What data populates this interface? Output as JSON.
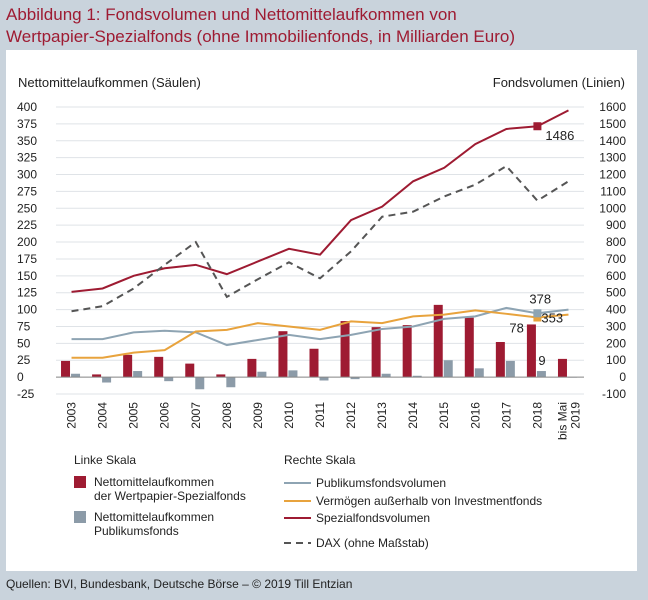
{
  "header": {
    "title_line1": "Abbildung 1: Fondsvolumen und Nettomittelaufkommen von",
    "title_line2": "Wertpapier-Spezialfonds (ohne Immobilienfonds, in Milliarden Euro)"
  },
  "footer": {
    "source": "Quellen: BVI, Bundesbank, Deutsche Börse – © 2019 Till Entzian"
  },
  "chart_data": {
    "type": "bar",
    "left_axis_title": "Nettomittelaufkommen (Säulen)",
    "right_axis_title": "Fondsvolumen (Linien)",
    "left_ylim": [
      -25,
      400
    ],
    "left_ticks": [
      "400",
      "375",
      "350",
      "325",
      "300",
      "275",
      "250",
      "225",
      "200",
      "175",
      "150",
      "125",
      "100",
      "75",
      "50",
      "25",
      "0",
      "-25"
    ],
    "right_ylim": [
      -100,
      1600
    ],
    "right_ticks": [
      "1600",
      "1500",
      "1400",
      "1300",
      "1200",
      "1100",
      "1000",
      "900",
      "800",
      "700",
      "600",
      "500",
      "400",
      "300",
      "200",
      "100",
      "0",
      "-100"
    ],
    "categories": [
      "2003",
      "2004",
      "2005",
      "2006",
      "2007",
      "2008",
      "2009",
      "2010",
      "2011",
      "2012",
      "2013",
      "2014",
      "2015",
      "2016",
      "2017",
      "2018"
    ],
    "last_category_line1": "bis Mai",
    "last_category_line2": "2019",
    "grid": true,
    "legend_left_title": "Linke Skala",
    "legend_right_title": "Rechte Skala",
    "bar_series": [
      {
        "name": "Nettomittelaufkommen der Wertpapier-Spezialfonds",
        "label_line1": "Nettomittelaufkommen",
        "label_line2": "der Wertpapier-Spezialfonds",
        "color": "#9e1b32",
        "values": [
          24,
          4,
          33,
          30,
          20,
          4,
          27,
          68,
          42,
          83,
          74,
          77,
          107,
          88,
          52,
          78,
          27
        ]
      },
      {
        "name": "Nettomittelaufkommen Publikumsfonds",
        "label_line1": "Nettomittelaufkommen",
        "label_line2": "Publikumsfonds",
        "color": "#8c9ba8",
        "values": [
          5,
          -8,
          9,
          -6,
          -18,
          -15,
          8,
          10,
          -5,
          -3,
          5,
          2,
          25,
          13,
          24,
          9,
          0
        ]
      }
    ],
    "line_series": [
      {
        "name": "Publikumsfondsvolumen",
        "color": "#8ea4b3",
        "style": "solid",
        "values": [
          225,
          225,
          265,
          275,
          265,
          190,
          220,
          250,
          225,
          250,
          285,
          300,
          345,
          360,
          410,
          378,
          400
        ]
      },
      {
        "name": "Vermögen außerhalb von Investmentfonds",
        "color": "#e8a33d",
        "style": "solid",
        "values": [
          115,
          115,
          145,
          160,
          270,
          280,
          320,
          300,
          280,
          330,
          320,
          360,
          370,
          395,
          375,
          353,
          370
        ]
      },
      {
        "name": "Spezialfondsvolumen",
        "color": "#9e1b32",
        "style": "solid",
        "values": [
          505,
          525,
          600,
          645,
          665,
          610,
          685,
          760,
          725,
          930,
          1010,
          1160,
          1240,
          1380,
          1470,
          1486,
          1580
        ]
      },
      {
        "name": "DAX (ohne Maßstab)",
        "color": "#555555",
        "style": "dashed",
        "values": [
          390,
          420,
          525,
          665,
          800,
          475,
          580,
          680,
          585,
          745,
          950,
          980,
          1070,
          1140,
          1250,
          1045,
          1160
        ]
      }
    ],
    "annotations": [
      {
        "text": "1486",
        "series": "Spezialfondsvolumen",
        "index": 15,
        "axis": "right",
        "value": 1486
      },
      {
        "text": "378",
        "series": "Publikumsfondsvolumen",
        "index": 15,
        "axis": "right",
        "value": 378
      },
      {
        "text": "353",
        "series": "Vermögen außerhalb von Investmentfonds",
        "index": 15,
        "axis": "right",
        "value": 353
      },
      {
        "text": "78",
        "series": "Nettomittelaufkommen der Wertpapier-Spezialfonds",
        "index": 15,
        "axis": "left",
        "value": 78
      },
      {
        "text": "9",
        "series": "Nettomittelaufkommen Publikumsfonds",
        "index": 15,
        "axis": "left",
        "value": 9
      }
    ]
  }
}
